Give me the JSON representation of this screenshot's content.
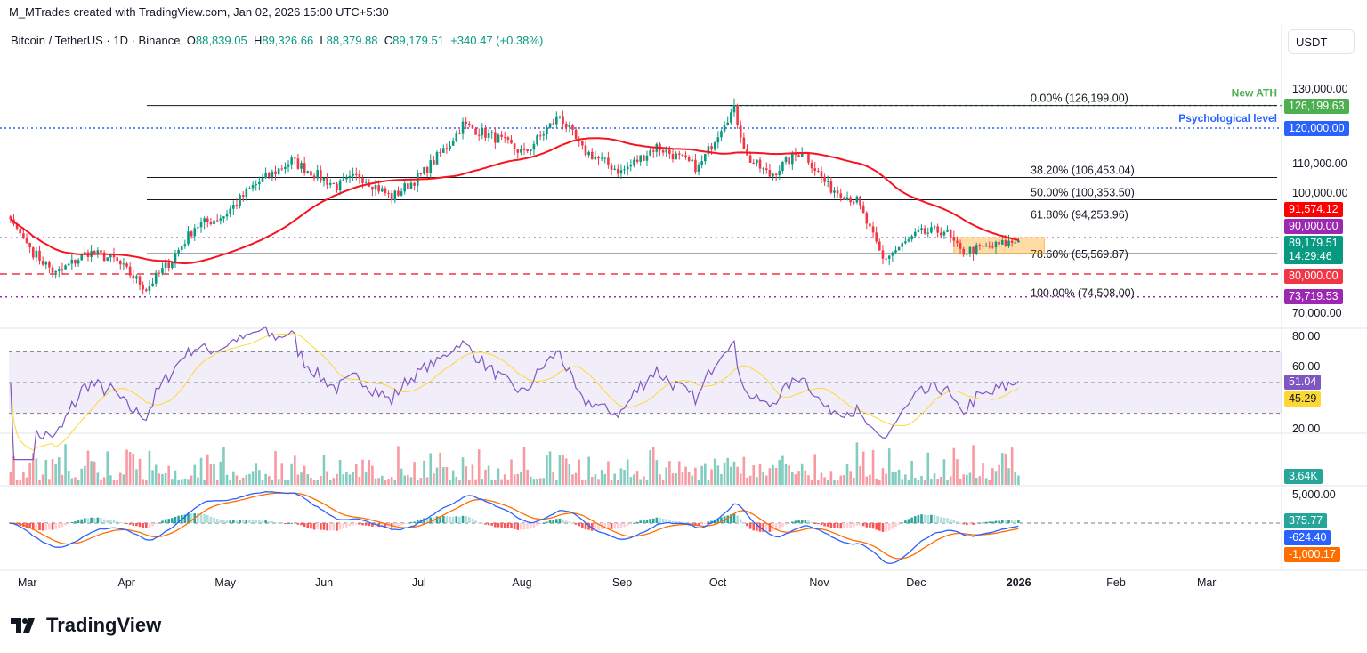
{
  "credit": "M_MTrades created with TradingView.com, Jan 02, 2026 15:00 UTC+5:30",
  "legend": {
    "symbol": "Bitcoin / TetherUS · 1D · Binance",
    "o_label": "O",
    "open": "88,839.05",
    "h_label": "H",
    "high": "89,326.66",
    "l_label": "L",
    "low": "88,379.88",
    "c_label": "C",
    "close": "89,179.51",
    "change": "+340.47 (+0.38%)"
  },
  "currency": "USDT",
  "logo": "TradingView",
  "colors": {
    "up": "#089981",
    "down": "#f23645",
    "ma": "#f7131f",
    "rsi": "#7e57c2",
    "rsi_ma": "#fdd835",
    "macd": "#2962ff",
    "signal": "#ff6d00",
    "fib": "#131722"
  },
  "chart_data": {
    "type": "candlestick",
    "title": "Bitcoin / TetherUS · 1D · Binance",
    "price_axis": {
      "ticks": [
        "130,000.00",
        "110,000.00",
        "100,000.00",
        "70,000.00"
      ],
      "range": [
        68000,
        138000
      ]
    },
    "time_axis": {
      "ticks": [
        "Mar",
        "Apr",
        "May",
        "Jun",
        "Jul",
        "Aug",
        "Sep",
        "Oct",
        "Nov",
        "Dec",
        "2026",
        "Feb",
        "Mar"
      ]
    },
    "approx_closes": [
      [
        "2025-02-24",
        95000
      ],
      [
        "2025-03-03",
        86000
      ],
      [
        "2025-03-10",
        80000
      ],
      [
        "2025-03-20",
        86000
      ],
      [
        "2025-03-28",
        84000
      ],
      [
        "2025-04-07",
        76000
      ],
      [
        "2025-04-15",
        84000
      ],
      [
        "2025-04-22",
        93000
      ],
      [
        "2025-05-01",
        96000
      ],
      [
        "2025-05-10",
        104000
      ],
      [
        "2025-05-22",
        111000
      ],
      [
        "2025-06-05",
        104000
      ],
      [
        "2025-06-12",
        107000
      ],
      [
        "2025-06-22",
        101000
      ],
      [
        "2025-07-01",
        107000
      ],
      [
        "2025-07-10",
        116000
      ],
      [
        "2025-07-14",
        121000
      ],
      [
        "2025-07-25",
        117000
      ],
      [
        "2025-08-02",
        113000
      ],
      [
        "2025-08-13",
        123500
      ],
      [
        "2025-08-20",
        114000
      ],
      [
        "2025-09-01",
        108000
      ],
      [
        "2025-09-12",
        115000
      ],
      [
        "2025-09-25",
        109000
      ],
      [
        "2025-10-03",
        122000
      ],
      [
        "2025-10-06",
        125000
      ],
      [
        "2025-10-10",
        112000
      ],
      [
        "2025-10-17",
        107000
      ],
      [
        "2025-10-27",
        114000
      ],
      [
        "2025-11-04",
        104000
      ],
      [
        "2025-11-13",
        100000
      ],
      [
        "2025-11-21",
        84000
      ],
      [
        "2025-12-02",
        91000
      ],
      [
        "2025-12-10",
        92000
      ],
      [
        "2025-12-15",
        86000
      ],
      [
        "2025-12-25",
        87500
      ],
      [
        "2026-01-02",
        89179.51
      ]
    ],
    "fib_levels": [
      {
        "label": "0.00% (126,199.00)",
        "price": 126199
      },
      {
        "label": "38.20% (106,453.04)",
        "price": 106453.04
      },
      {
        "label": "50.00% (100,353.50)",
        "price": 100353.5
      },
      {
        "label": "61.80% (94,253.96)",
        "price": 94253.96
      },
      {
        "label": "78.60% (85,569.87)",
        "price": 85569.87
      },
      {
        "label": "100.00% (74,508.00)",
        "price": 74508
      }
    ],
    "horizontal_levels": [
      {
        "label": "New ATH",
        "price": 126199.63,
        "value": "126,199.63",
        "color": "#4caf50"
      },
      {
        "label": "Psychological level",
        "price": 120000,
        "value": "120,000.00",
        "color": "#2962ff"
      },
      {
        "price": 90000,
        "value": "90,000.00",
        "color": "#9c27b0"
      },
      {
        "price": 80000,
        "value": "80,000.00",
        "color": "#f23645"
      },
      {
        "price": 73719.53,
        "value": "73,719.53",
        "color": "#9c27b0"
      }
    ],
    "consolidation_box": {
      "from": "2025-12-13",
      "to": "2026-01-10",
      "top": 90000,
      "bottom": 85600
    },
    "ma": {
      "period": 50,
      "value": "91,574.12"
    },
    "last_price": {
      "value": "89,179.51",
      "countdown": "14:29:46"
    },
    "rsi": {
      "ticks": [
        "80.00",
        "60.00",
        "20.00"
      ],
      "value": "51.04",
      "ma_value": "45.29",
      "bands": [
        70,
        50,
        30
      ]
    },
    "volume": {
      "value": "3.64K"
    },
    "macd": {
      "tick": "5,000.00",
      "histogram": "375.77",
      "macd": "-624.40",
      "signal": "-1,000.17"
    }
  }
}
